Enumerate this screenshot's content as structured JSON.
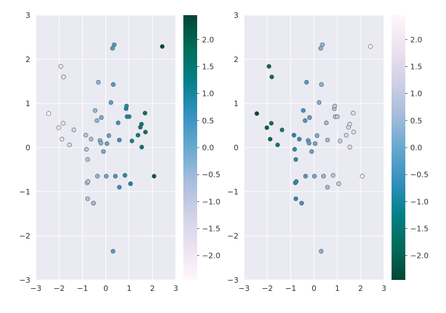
{
  "chart_data": [
    {
      "type": "scatter",
      "title": "",
      "xlabel": "",
      "ylabel": "",
      "xlim": [
        -3,
        3
      ],
      "ylim": [
        -3,
        3
      ],
      "xticks": [
        "−3",
        "−2",
        "−1",
        "0",
        "1",
        "2",
        "3"
      ],
      "yticks": [
        "−3",
        "−2",
        "−1",
        "0",
        "1",
        "2",
        "3"
      ],
      "grid": true,
      "colormap": "PuBuGn",
      "color_by": "x",
      "colorbar": {
        "range": [
          -2.45,
          2.45
        ],
        "ticks": [
          "2.0",
          "1.5",
          "1.0",
          "0.5",
          "0.0",
          "−0.5",
          "−1.0",
          "−1.5",
          "−2.0"
        ],
        "orientation": "vertical"
      },
      "points": [
        [
          -2.45,
          0.77
        ],
        [
          -1.93,
          1.84
        ],
        [
          -1.81,
          1.6
        ],
        [
          -2.02,
          0.45
        ],
        [
          -1.88,
          0.19
        ],
        [
          -1.83,
          0.55
        ],
        [
          -1.56,
          0.06
        ],
        [
          -1.37,
          0.4
        ],
        [
          -0.86,
          0.28
        ],
        [
          -0.83,
          -0.04
        ],
        [
          -0.78,
          -0.27
        ],
        [
          -0.8,
          -0.8
        ],
        [
          -0.76,
          -0.77
        ],
        [
          -0.78,
          -1.16
        ],
        [
          -0.63,
          0.19
        ],
        [
          -0.53,
          -1.26
        ],
        [
          -0.46,
          0.84
        ],
        [
          -0.38,
          0.61
        ],
        [
          -0.36,
          -0.65
        ],
        [
          -0.32,
          1.48
        ],
        [
          -0.25,
          0.16
        ],
        [
          -0.21,
          0.1
        ],
        [
          -0.19,
          0.68
        ],
        [
          -0.1,
          -0.09
        ],
        [
          0.02,
          -0.65
        ],
        [
          0.05,
          0.09
        ],
        [
          0.13,
          0.27
        ],
        [
          0.22,
          1.02
        ],
        [
          0.29,
          2.25
        ],
        [
          0.36,
          2.33
        ],
        [
          0.32,
          1.43
        ],
        [
          0.31,
          -2.35
        ],
        [
          0.41,
          -0.65
        ],
        [
          0.53,
          0.56
        ],
        [
          0.58,
          0.17
        ],
        [
          0.58,
          -0.9
        ],
        [
          0.82,
          -0.63
        ],
        [
          0.87,
          0.88
        ],
        [
          0.89,
          0.94
        ],
        [
          0.91,
          0.7
        ],
        [
          1.0,
          0.7
        ],
        [
          1.06,
          -0.82
        ],
        [
          1.12,
          0.15
        ],
        [
          1.38,
          0.28
        ],
        [
          1.48,
          0.46
        ],
        [
          1.53,
          0.53
        ],
        [
          1.54,
          0.01
        ],
        [
          1.7,
          0.35
        ],
        [
          1.68,
          0.78
        ],
        [
          2.07,
          -0.65
        ],
        [
          2.42,
          2.29
        ]
      ]
    },
    {
      "type": "scatter",
      "title": "",
      "xlabel": "",
      "ylabel": "",
      "xlim": [
        -3,
        3
      ],
      "ylim": [
        -3,
        3
      ],
      "xticks": [
        "−3",
        "−2",
        "−1",
        "0",
        "1",
        "2",
        "3"
      ],
      "yticks": [
        "−3",
        "−2",
        "−1",
        "0",
        "1",
        "2",
        "3"
      ],
      "grid": true,
      "colormap": "PuBuGn_r",
      "color_by": "-x",
      "colorbar": {
        "range": [
          -2.45,
          2.45
        ],
        "ticks": [
          "2.0",
          "1.5",
          "1.0",
          "0.5",
          "0.0",
          "−0.5",
          "−1.0",
          "−1.5",
          "−2.0"
        ],
        "orientation": "vertical"
      },
      "points": [
        [
          -2.45,
          0.77
        ],
        [
          -1.93,
          1.84
        ],
        [
          -1.81,
          1.6
        ],
        [
          -2.02,
          0.45
        ],
        [
          -1.88,
          0.19
        ],
        [
          -1.83,
          0.55
        ],
        [
          -1.56,
          0.06
        ],
        [
          -1.37,
          0.4
        ],
        [
          -0.86,
          0.28
        ],
        [
          -0.83,
          -0.04
        ],
        [
          -0.78,
          -0.27
        ],
        [
          -0.8,
          -0.8
        ],
        [
          -0.76,
          -0.77
        ],
        [
          -0.78,
          -1.16
        ],
        [
          -0.63,
          0.19
        ],
        [
          -0.53,
          -1.26
        ],
        [
          -0.46,
          0.84
        ],
        [
          -0.38,
          0.61
        ],
        [
          -0.36,
          -0.65
        ],
        [
          -0.32,
          1.48
        ],
        [
          -0.25,
          0.16
        ],
        [
          -0.21,
          0.1
        ],
        [
          -0.19,
          0.68
        ],
        [
          -0.1,
          -0.09
        ],
        [
          0.02,
          -0.65
        ],
        [
          0.05,
          0.09
        ],
        [
          0.13,
          0.27
        ],
        [
          0.22,
          1.02
        ],
        [
          0.29,
          2.25
        ],
        [
          0.36,
          2.33
        ],
        [
          0.32,
          1.43
        ],
        [
          0.31,
          -2.35
        ],
        [
          0.41,
          -0.65
        ],
        [
          0.53,
          0.56
        ],
        [
          0.58,
          0.17
        ],
        [
          0.58,
          -0.9
        ],
        [
          0.82,
          -0.63
        ],
        [
          0.87,
          0.88
        ],
        [
          0.89,
          0.94
        ],
        [
          0.91,
          0.7
        ],
        [
          1.0,
          0.7
        ],
        [
          1.06,
          -0.82
        ],
        [
          1.12,
          0.15
        ],
        [
          1.38,
          0.28
        ],
        [
          1.48,
          0.46
        ],
        [
          1.53,
          0.53
        ],
        [
          1.54,
          0.01
        ],
        [
          1.7,
          0.35
        ],
        [
          1.68,
          0.78
        ],
        [
          2.07,
          -0.65
        ],
        [
          2.42,
          2.29
        ]
      ]
    }
  ]
}
